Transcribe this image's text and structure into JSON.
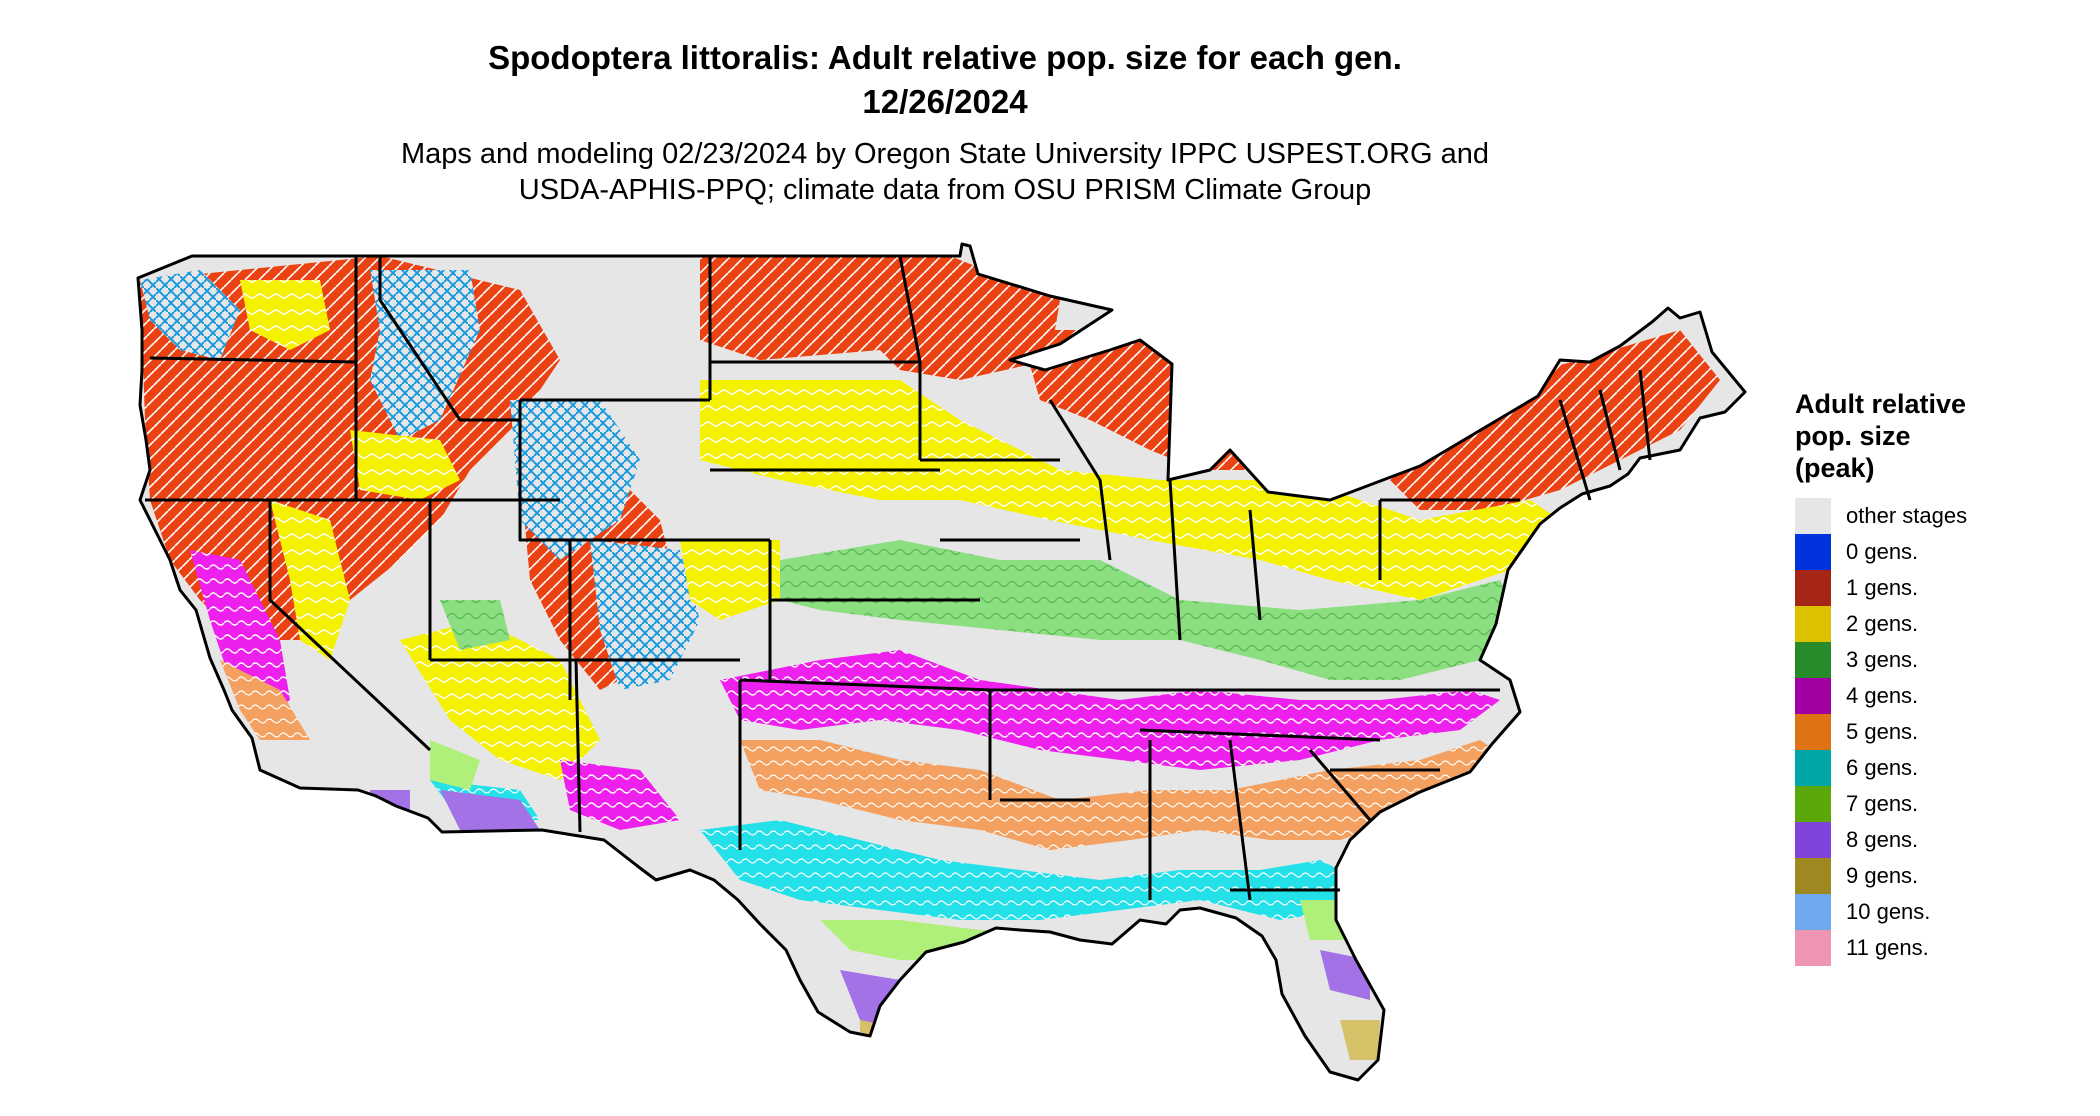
{
  "title": {
    "line1": "Spodoptera littoralis: Adult relative pop. size for each gen.",
    "line2": "12/26/2024"
  },
  "subtitle": {
    "line1": "Maps and modeling 02/23/2024 by Oregon State University IPPC USPEST.ORG and",
    "line2": "USDA-APHIS-PPQ; climate data from OSU PRISM Climate Group"
  },
  "legend": {
    "title_lines": [
      "Adult relative",
      "pop. size",
      "(peak)"
    ],
    "items": [
      {
        "label": "other stages",
        "color": "#e6e6e6"
      },
      {
        "label": "0 gens.",
        "color": "#0033dd"
      },
      {
        "label": "1 gens.",
        "color": "#a52616"
      },
      {
        "label": "2 gens.",
        "color": "#dcc100"
      },
      {
        "label": "3 gens.",
        "color": "#278a2b"
      },
      {
        "label": "4 gens.",
        "color": "#a300a3"
      },
      {
        "label": "5 gens.",
        "color": "#dd7314"
      },
      {
        "label": "6 gens.",
        "color": "#00a6a6"
      },
      {
        "label": "7 gens.",
        "color": "#5ca80a"
      },
      {
        "label": "8 gens.",
        "color": "#8044dd"
      },
      {
        "label": "9 gens.",
        "color": "#a08820"
      },
      {
        "label": "10 gens.",
        "color": "#6ea8ee"
      },
      {
        "label": "11 gens.",
        "color": "#ee95b4"
      }
    ]
  },
  "map_colors": {
    "background": "#e6e6e6",
    "one_gen": "#ea4213",
    "two_gen": "#f5f200",
    "three_gen": "#8cdf80",
    "four_gen": "#ee20ee",
    "five_gen": "#f3a060",
    "six_gen": "#24e0e8",
    "seven_gen": "#aef07a",
    "eight_gen": "#a272e6",
    "nine_gen": "#d6c068",
    "cold_blue": "#1a9be0",
    "border": "#000000"
  }
}
